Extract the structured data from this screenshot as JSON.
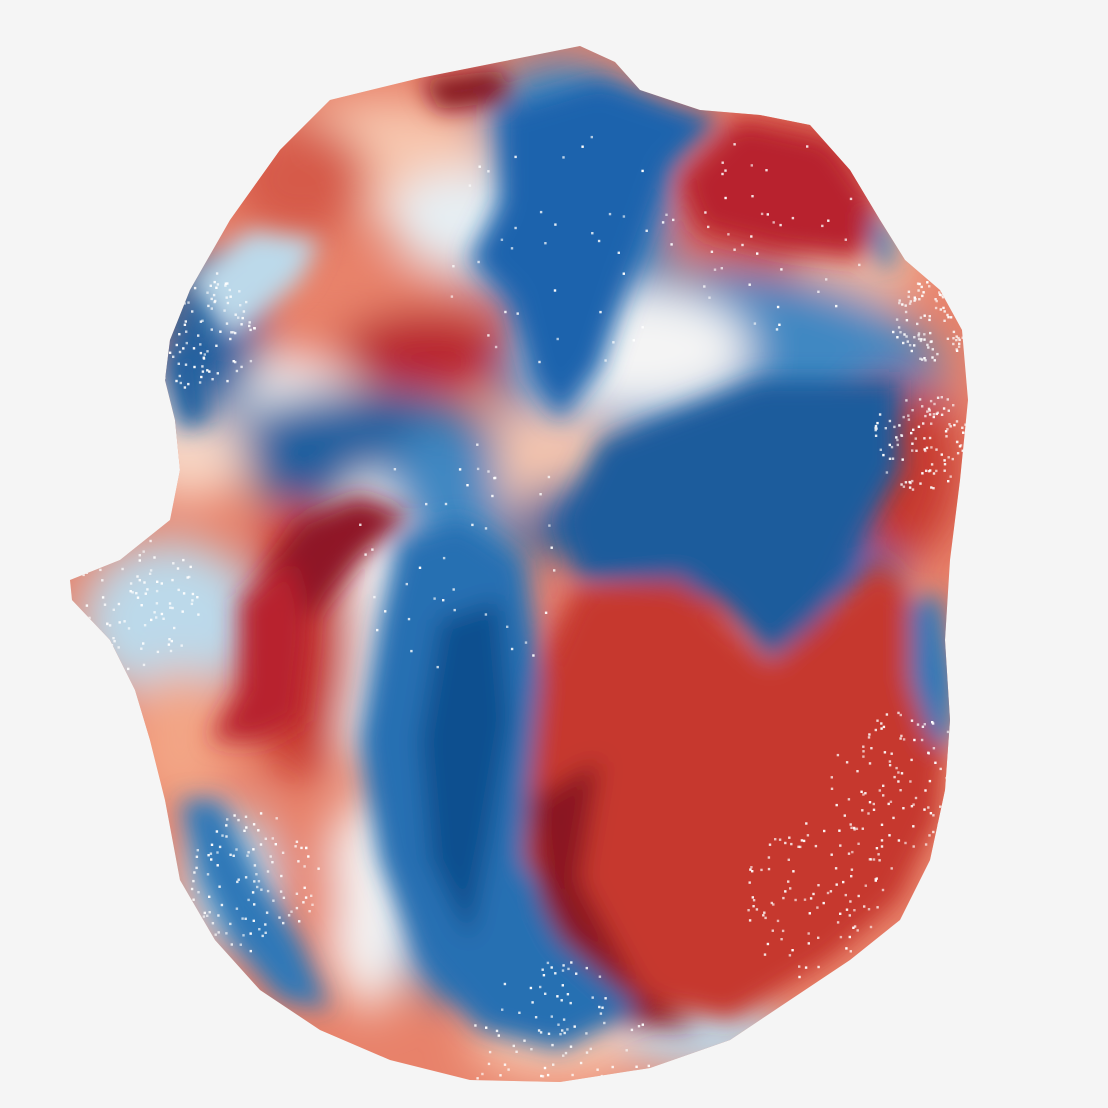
{
  "figure": {
    "kind": "phase-map",
    "background": "#f5f5f5",
    "palette": {
      "deep_red": "#7f0a1f",
      "red": "#b8212e",
      "salmon": "#e8826a",
      "light_salmon": "#f7c6ae",
      "white": "#f7f7f7",
      "light_blue": "#bcd9ea",
      "blue": "#3f88c2",
      "deep_blue": "#0d4f8f"
    },
    "colormap": "RdBu",
    "speckle_color": "#ffffff"
  }
}
